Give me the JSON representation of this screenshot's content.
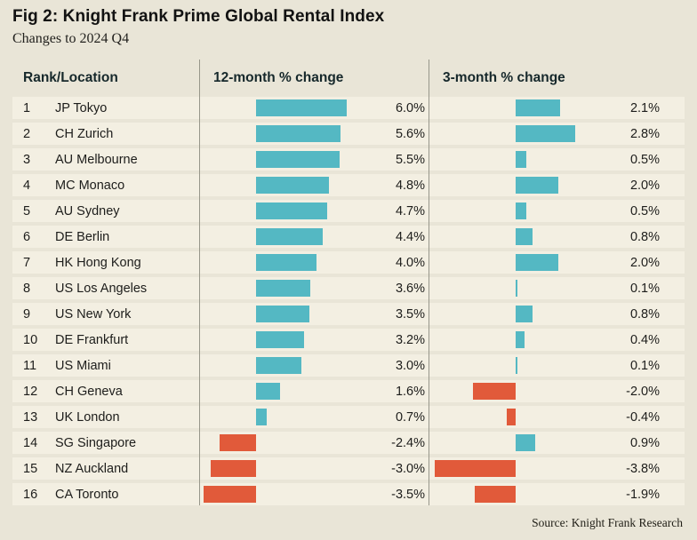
{
  "title": "Fig 2: Knight Frank Prime Global Rental Index",
  "subtitle": "Changes to 2024 Q4",
  "source": "Source: Knight Frank Research",
  "header": {
    "rank_location": "Rank/Location"
  },
  "chart_data": {
    "type": "bar",
    "orientation": "horizontal",
    "title": "Fig 2: Knight Frank Prime Global Rental Index",
    "subtitle": "Changes to 2024 Q4",
    "value_suffix": "%",
    "positive_color": "#54b8c3",
    "negative_color": "#e15a3a",
    "ranks": [
      1,
      2,
      3,
      4,
      5,
      6,
      7,
      8,
      9,
      10,
      11,
      12,
      13,
      14,
      15,
      16
    ],
    "categories": [
      "JP Tokyo",
      "CH Zurich",
      "AU Melbourne",
      "MC Monaco",
      "AU Sydney",
      "DE Berlin",
      "HK Hong Kong",
      "US Los Angeles",
      "US New York",
      "DE Frankfurt",
      "US Miami",
      "CH Geneva",
      "UK London",
      "SG Singapore",
      "NZ Auckland",
      "CA Toronto"
    ],
    "series": [
      {
        "name": "12-month % change",
        "values": [
          6.0,
          5.6,
          5.5,
          4.8,
          4.7,
          4.4,
          4.0,
          3.6,
          3.5,
          3.2,
          3.0,
          1.6,
          0.7,
          -2.4,
          -3.0,
          -3.5
        ]
      },
      {
        "name": "3-month % change",
        "values": [
          2.1,
          2.8,
          0.5,
          2.0,
          0.5,
          0.8,
          2.0,
          0.1,
          0.8,
          0.4,
          0.1,
          -2.0,
          -0.4,
          0.9,
          -3.8,
          -1.9
        ]
      }
    ]
  }
}
